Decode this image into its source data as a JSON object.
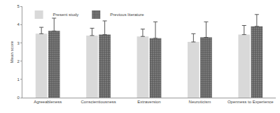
{
  "chart_data": {
    "type": "bar",
    "categories": [
      "Agreeableness",
      "Conscientiousness",
      "Extraversion",
      "Neuroticism",
      "Openness to Experience"
    ],
    "series": [
      {
        "name": "Present study",
        "color": "#d9d9d9",
        "values": [
          3.5,
          3.4,
          3.35,
          3.05,
          3.45
        ],
        "errors": [
          0.35,
          0.4,
          0.4,
          0.45,
          0.5
        ]
      },
      {
        "name": "Previous literature",
        "color": "#5f5f5f",
        "values": [
          3.65,
          3.45,
          3.25,
          3.3,
          3.9
        ],
        "errors": [
          0.7,
          0.75,
          0.9,
          0.85,
          0.65
        ]
      }
    ],
    "y_label": "Mean score",
    "ylim": [
      0,
      5
    ],
    "yticks": [
      0,
      1,
      2,
      3,
      4,
      5
    ],
    "grid": false,
    "legend": "top-left"
  }
}
